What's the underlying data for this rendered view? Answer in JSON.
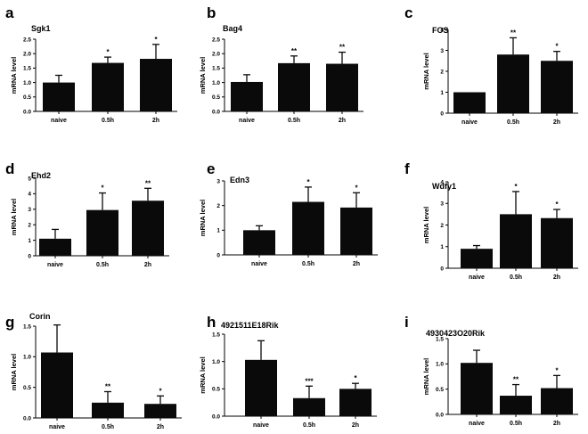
{
  "chart_data": [
    {
      "letter": "a",
      "title": "Sgk1",
      "type": "bar",
      "ylabel": "mRNA level",
      "categories": [
        "naive",
        "0.5h",
        "2h"
      ],
      "values": [
        1.0,
        1.68,
        1.82
      ],
      "errors": [
        0.25,
        0.2,
        0.5
      ],
      "ylim": [
        0,
        2.5
      ],
      "yticks": [
        "0.0",
        "0.5",
        "1.0",
        "1.5",
        "2.0",
        "2.5"
      ],
      "sig": [
        "",
        "*",
        "*"
      ]
    },
    {
      "letter": "b",
      "title": "Bag4",
      "type": "bar",
      "ylabel": "mRNA level",
      "categories": [
        "naive",
        "0.5h",
        "2h"
      ],
      "values": [
        1.02,
        1.67,
        1.65
      ],
      "errors": [
        0.25,
        0.25,
        0.4
      ],
      "ylim": [
        0,
        2.5
      ],
      "yticks": [
        "0.0",
        "0.5",
        "1.0",
        "1.5",
        "2.0",
        "2.5"
      ],
      "sig": [
        "",
        "**",
        "**"
      ]
    },
    {
      "letter": "c",
      "title": "FOS",
      "type": "bar",
      "ylabel": "mRNA level",
      "categories": [
        "naive",
        "0.5h",
        "2h"
      ],
      "values": [
        1.0,
        2.8,
        2.5
      ],
      "errors": [
        0,
        0.8,
        0.45
      ],
      "ylim": [
        0,
        4
      ],
      "yticks": [
        "0",
        "1",
        "2",
        "3",
        "4"
      ],
      "sig": [
        "",
        "**",
        "*"
      ]
    },
    {
      "letter": "d",
      "title": "Ehd2",
      "type": "bar",
      "ylabel": "mRNA level",
      "categories": [
        "naive",
        "0.5h",
        "2h"
      ],
      "values": [
        1.1,
        2.95,
        3.55
      ],
      "errors": [
        0.6,
        1.1,
        0.8
      ],
      "ylim": [
        0,
        5
      ],
      "yticks": [
        "0",
        "1",
        "2",
        "3",
        "4",
        "5"
      ],
      "sig": [
        "",
        "*",
        "**"
      ]
    },
    {
      "letter": "e",
      "title": "Edn3",
      "type": "bar",
      "ylabel": "mRNA level",
      "categories": [
        "naive",
        "0.5h",
        "2h"
      ],
      "values": [
        1.0,
        2.15,
        1.92
      ],
      "errors": [
        0.18,
        0.6,
        0.6
      ],
      "ylim": [
        0,
        3
      ],
      "yticks": [
        "0",
        "1",
        "2",
        "3"
      ],
      "sig": [
        "",
        "*",
        "*"
      ]
    },
    {
      "letter": "f",
      "title": "Wdfy1",
      "type": "bar",
      "ylabel": "mRNA level",
      "categories": [
        "naive",
        "0.5h",
        "2h"
      ],
      "values": [
        0.9,
        2.5,
        2.32
      ],
      "errors": [
        0.15,
        1.05,
        0.4
      ],
      "ylim": [
        0,
        4
      ],
      "yticks": [
        "0",
        "1",
        "2",
        "3",
        "4"
      ],
      "sig": [
        "",
        "*",
        "*"
      ]
    },
    {
      "letter": "g",
      "title": "Corin",
      "type": "bar",
      "ylabel": "mRNA level",
      "categories": [
        "naive",
        "0.5h",
        "2h"
      ],
      "values": [
        1.07,
        0.25,
        0.23
      ],
      "errors": [
        0.45,
        0.18,
        0.13
      ],
      "ylim": [
        0,
        1.5
      ],
      "yticks": [
        "0.0",
        "0.5",
        "1.0",
        "1.5"
      ],
      "sig": [
        "",
        "**",
        "*"
      ]
    },
    {
      "letter": "h",
      "title": "4921511E18Rik",
      "type": "bar",
      "ylabel": "mRNA level",
      "categories": [
        "naive",
        "0.5h",
        "2h"
      ],
      "values": [
        1.03,
        0.33,
        0.5
      ],
      "errors": [
        0.35,
        0.22,
        0.1
      ],
      "ylim": [
        0,
        1.5
      ],
      "yticks": [
        "0.0",
        "0.5",
        "1.0",
        "1.5"
      ],
      "sig": [
        "",
        "***",
        "*"
      ]
    },
    {
      "letter": "i",
      "title": "4930423O20Rik",
      "type": "bar",
      "ylabel": "mRNA level",
      "categories": [
        "naive",
        "0.5h",
        "2h"
      ],
      "values": [
        1.02,
        0.37,
        0.52
      ],
      "errors": [
        0.25,
        0.22,
        0.25
      ],
      "ylim": [
        0,
        1.5
      ],
      "yticks": [
        "0.0",
        "0.5",
        "1.0",
        "1.5"
      ],
      "sig": [
        "",
        "**",
        "*"
      ]
    }
  ],
  "colors": {
    "bar": "#0a0a0a",
    "axis": "#000000",
    "background": "#ffffff"
  }
}
